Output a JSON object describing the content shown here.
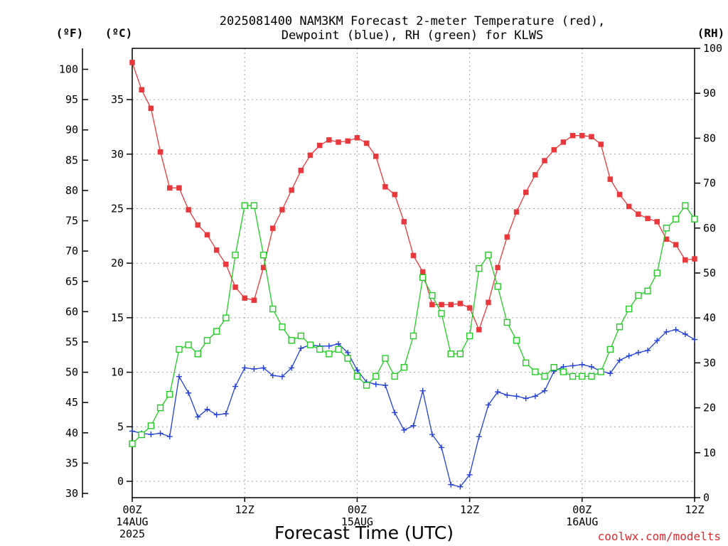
{
  "chart_data": {
    "type": "line",
    "title_line1": "2025081400 NAM3KM Forecast 2-meter Temperature (red),",
    "title_line2": "Dewpoint (blue), RH (green) for KLWS",
    "unit_f": "(ºF)",
    "unit_c": "(ºC)",
    "unit_rh": "(RH)",
    "xlabel": "Forecast Time (UTC)",
    "credit": "coolwx.com/modelts",
    "x_hours_range": [
      0,
      60
    ],
    "celsius_range": [
      -1.5,
      39.7
    ],
    "rh_range": [
      0,
      100
    ],
    "f_ticks": [
      30,
      35,
      40,
      45,
      50,
      55,
      60,
      65,
      70,
      75,
      80,
      85,
      90,
      95,
      100
    ],
    "c_ticks": [
      0,
      5,
      10,
      15,
      20,
      25,
      30,
      35
    ],
    "rh_ticks": [
      0,
      10,
      20,
      30,
      40,
      50,
      60,
      70,
      80,
      90,
      100
    ],
    "x_ticks": [
      {
        "hour": 0,
        "lines": [
          "00Z",
          "14AUG",
          "2025"
        ]
      },
      {
        "hour": 12,
        "lines": [
          "12Z"
        ]
      },
      {
        "hour": 24,
        "lines": [
          "00Z",
          "15AUG"
        ]
      },
      {
        "hour": 36,
        "lines": [
          "12Z"
        ]
      },
      {
        "hour": 48,
        "lines": [
          "00Z",
          "16AUG"
        ]
      },
      {
        "hour": 60,
        "lines": [
          "12Z"
        ]
      }
    ],
    "grid": true,
    "colors": {
      "temperature": "#e8383c",
      "dewpoint": "#2040d8",
      "rh": "#22cc22"
    },
    "series": [
      {
        "key": "temperature",
        "marker": "filled-square",
        "values": [
          38.4,
          35.9,
          34.2,
          30.2,
          26.9,
          26.9,
          24.9,
          23.5,
          22.6,
          21.2,
          19.9,
          17.8,
          16.8,
          16.6,
          19.6,
          23.2,
          24.9,
          26.7,
          28.5,
          29.9,
          30.8,
          31.3,
          31.1,
          31.2,
          31.5,
          31.0,
          29.8,
          27.0,
          26.3,
          23.8,
          20.7,
          19.2,
          16.2,
          16.2,
          16.2,
          16.3,
          15.9,
          13.9,
          16.4,
          19.6,
          22.4,
          24.7,
          26.5,
          28.1,
          29.4,
          30.4,
          31.1,
          31.7,
          31.7,
          31.6,
          30.9,
          27.7,
          26.3,
          25.2,
          24.5,
          24.1,
          23.8,
          22.2,
          21.7,
          20.3,
          20.4
        ]
      },
      {
        "key": "dewpoint",
        "marker": "plus",
        "values": [
          4.6,
          4.4,
          4.3,
          4.4,
          4.1,
          9.6,
          8.1,
          5.9,
          6.6,
          6.1,
          6.2,
          8.7,
          10.4,
          10.3,
          10.4,
          9.7,
          9.6,
          10.4,
          12.2,
          12.5,
          12.4,
          12.4,
          12.6,
          11.8,
          10.2,
          9.1,
          8.9,
          8.8,
          6.3,
          4.7,
          5.1,
          8.3,
          4.3,
          3.1,
          -0.3,
          -0.5,
          0.6,
          4.1,
          7.0,
          8.2,
          7.9,
          7.8,
          7.6,
          7.8,
          8.3,
          10.1,
          10.5,
          10.6,
          10.7,
          10.5,
          10.1,
          9.9,
          11.1,
          11.5,
          11.8,
          12.0,
          12.9,
          13.7,
          13.9,
          13.5,
          13.0
        ]
      },
      {
        "key": "rh",
        "marker": "open-square",
        "values": [
          12,
          14,
          16,
          20,
          23,
          33,
          34,
          32,
          35,
          37,
          40,
          54,
          65,
          65,
          54,
          42,
          38,
          35,
          36,
          34,
          33,
          32,
          33,
          31,
          27,
          25,
          27,
          31,
          27,
          29,
          36,
          49,
          45,
          41,
          32,
          32,
          36,
          51,
          54,
          47,
          39,
          35,
          30,
          28,
          27,
          29,
          28,
          27,
          27,
          27,
          28,
          33,
          38,
          42,
          45,
          46,
          50,
          60,
          62,
          65,
          62
        ]
      }
    ]
  }
}
